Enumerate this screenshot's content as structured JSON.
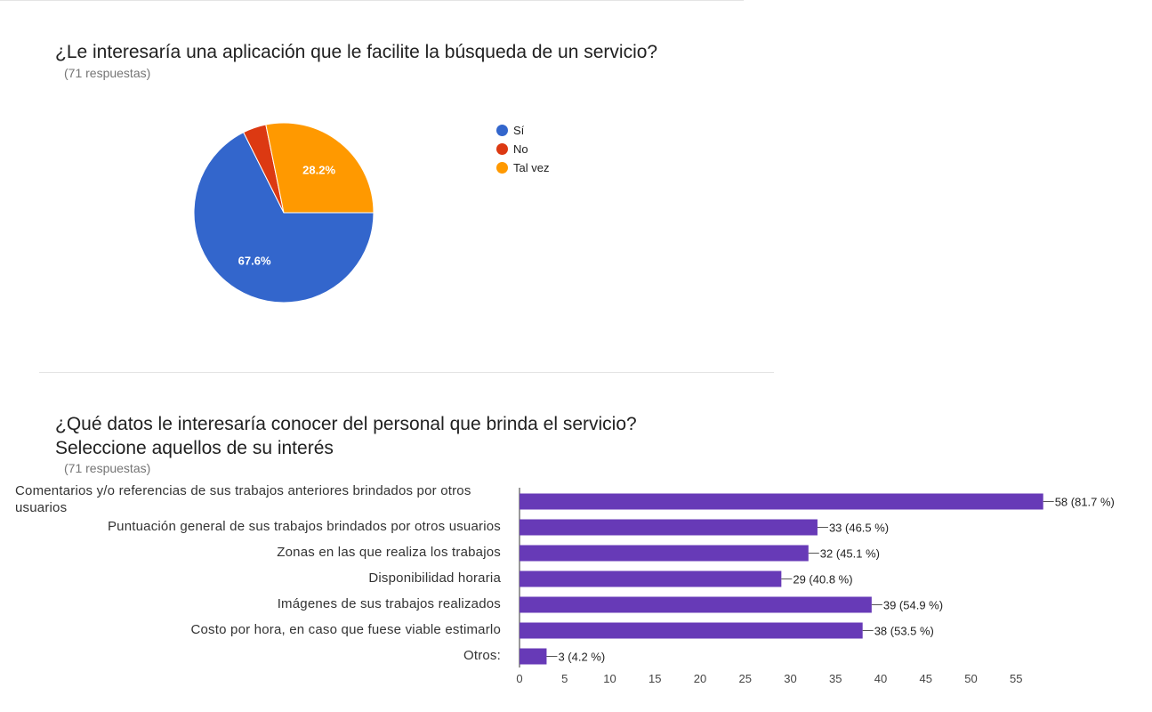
{
  "question1": {
    "title": "¿Le interesaría una aplicación que le facilite la búsqueda de un servicio?",
    "responses": "(71 respuestas)"
  },
  "question2": {
    "title_line1": "¿Qué datos le interesaría conocer del personal que brinda el servicio?",
    "title_line2": "Seleccione aquellos de su interés",
    "responses": "(71 respuestas)"
  },
  "chart_data": [
    {
      "type": "pie",
      "labels": [
        "Sí",
        "No",
        "Tal vez"
      ],
      "values": [
        67.6,
        4.2,
        28.2
      ],
      "display_labels": [
        "67.6%",
        "",
        "28.2%"
      ],
      "colors": [
        "#3366cc",
        "#dc3912",
        "#ff9900"
      ],
      "legend_position": "right"
    },
    {
      "type": "bar",
      "orientation": "horizontal",
      "categories": [
        "Comentarios y/o referencias de sus trabajos anteriores brindados por otros usuarios",
        "Puntuación general de sus trabajos brindados por otros usuarios",
        "Zonas en las que realiza los trabajos",
        "Disponibilidad horaria",
        "Imágenes de sus trabajos realizados",
        "Costo por hora, en caso que fuese viable estimarlo",
        "Otros:"
      ],
      "values": [
        58,
        33,
        32,
        29,
        39,
        38,
        3
      ],
      "value_labels": [
        "58 (81.7 %)",
        "33 (46.5 %)",
        "32 (45.1 %)",
        "29 (40.8 %)",
        "39 (54.9 %)",
        "38 (53.5 %)",
        "3 (4.2 %)"
      ],
      "xlim": [
        0,
        58
      ],
      "xticks": [
        0,
        5,
        10,
        15,
        20,
        25,
        30,
        35,
        40,
        45,
        50,
        55
      ],
      "color": "#673ab7"
    }
  ]
}
